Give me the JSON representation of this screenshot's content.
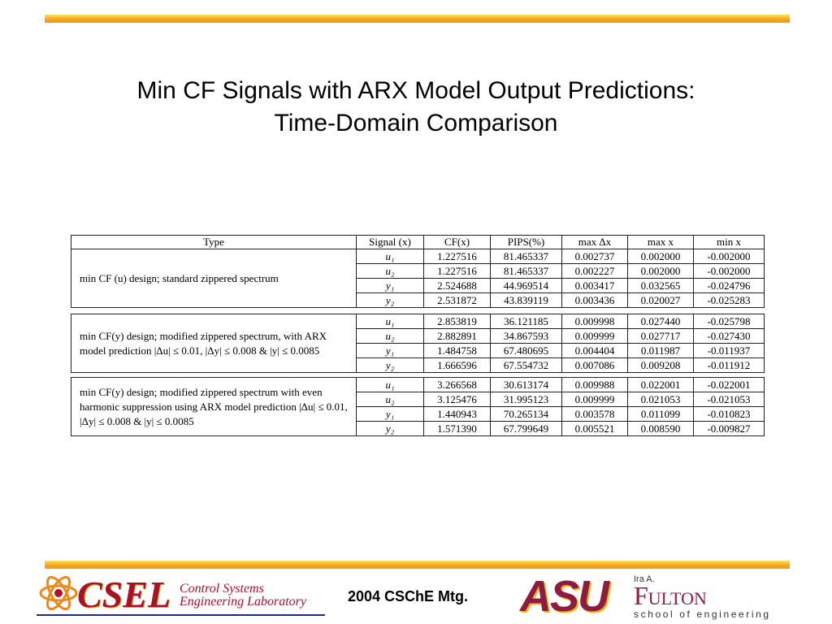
{
  "header": {
    "title_lines": [
      "Min CF Signals with ARX Model Output Predictions:",
      "Time-Domain Comparison"
    ]
  },
  "table": {
    "columns": [
      "Type",
      "Signal (x)",
      "CF(x)",
      "PIPS(%)",
      "max Δx",
      "max x",
      "min x"
    ],
    "groups": [
      {
        "description": "min CF (u) design; standard zippered spectrum",
        "rows": [
          [
            "u₁",
            "1.227516",
            "81.465337",
            "0.002737",
            "0.002000",
            "-0.002000"
          ],
          [
            "u₂",
            "1.227516",
            "81.465337",
            "0.002227",
            "0.002000",
            "-0.002000"
          ],
          [
            "y₁",
            "2.524688",
            "44.969514",
            "0.003417",
            "0.032565",
            "-0.024796"
          ],
          [
            "y₂",
            "2.531872",
            "43.839119",
            "0.003436",
            "0.020027",
            "-0.025283"
          ]
        ]
      },
      {
        "description": "min CF(y) design; modified zippered spectrum, with ARX model prediction |Δu| ≤ 0.01, |Δy| ≤ 0.008 & |y| ≤ 0.0085",
        "rows": [
          [
            "u₁",
            "2.853819",
            "36.121185",
            "0.009998",
            "0.027440",
            "-0.025798"
          ],
          [
            "u₂",
            "2.882891",
            "34.867593",
            "0.009999",
            "0.027717",
            "-0.027430"
          ],
          [
            "y₁",
            "1.484758",
            "67.480695",
            "0.004404",
            "0.011987",
            "-0.011937"
          ],
          [
            "y₂",
            "1.666596",
            "67.554732",
            "0.007086",
            "0.009208",
            "-0.011912"
          ]
        ]
      },
      {
        "description": "min CF(y) design; modified zippered spectrum with even harmonic suppression using ARX model prediction |Δu| ≤ 0.01, |Δy| ≤ 0.008 & |y| ≤ 0.0085",
        "rows": [
          [
            "u₁",
            "3.266568",
            "30.613174",
            "0.009988",
            "0.022001",
            "-0.022001"
          ],
          [
            "u₂",
            "3.125476",
            "31.995123",
            "0.009999",
            "0.021053",
            "-0.021053"
          ],
          [
            "y₁",
            "1.440943",
            "70.265134",
            "0.003578",
            "0.011099",
            "-0.010823"
          ],
          [
            "y₂",
            "1.571390",
            "67.799649",
            "0.005521",
            "0.008590",
            "-0.009827"
          ]
        ]
      }
    ]
  },
  "footer": {
    "meeting": "2004 CSChE Mtg.",
    "lab_logo": {
      "abbr": "CSEL",
      "name_lines": [
        "Control Systems",
        "Engineering Laboratory"
      ]
    },
    "school_logo": {
      "abbr": "ASU",
      "name_lines": [
        "Ira A.",
        "Fulton",
        "school of engineering"
      ]
    }
  }
}
